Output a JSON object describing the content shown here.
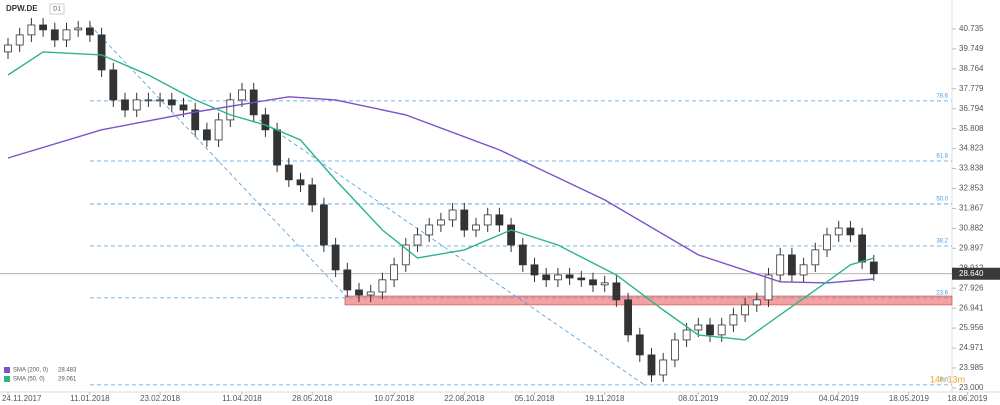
{
  "chart_data": {
    "type": "candlestick",
    "title": "DPW.DE",
    "timeframe": "D1",
    "categories": [
      "24.11.2017",
      null,
      null,
      null,
      null,
      null,
      null,
      "11.01.2018",
      null,
      null,
      null,
      null,
      null,
      "23.02.2018",
      null,
      null,
      null,
      null,
      null,
      null,
      "11.04.2018",
      null,
      null,
      null,
      null,
      null,
      "28.05.2018",
      null,
      null,
      null,
      null,
      null,
      null,
      "10.07.2018",
      null,
      null,
      null,
      null,
      null,
      "22.08.2018",
      null,
      null,
      null,
      null,
      null,
      "05.10.2018",
      null,
      null,
      null,
      null,
      null,
      "19.11.2018",
      null,
      null,
      null,
      null,
      null,
      null,
      null,
      "08.01.2019",
      null,
      null,
      null,
      null,
      null,
      "20.02.2019",
      null,
      null,
      null,
      null,
      null,
      "04.04.2019",
      null,
      null,
      null,
      null,
      null,
      "18.05.2019",
      null,
      null,
      null,
      null,
      "18.06.2019"
    ],
    "open": [
      39.6,
      39.94,
      40.44,
      40.93,
      40.69,
      40.19,
      40.69,
      40.78,
      40.44,
      38.71,
      37.23,
      36.73,
      37.23,
      37.23,
      37.23,
      36.98,
      36.73,
      35.75,
      35.25,
      36.24,
      37.23,
      37.72,
      36.49,
      35.75,
      34.01,
      33.28,
      33.03,
      32.04,
      30.06,
      28.83,
      27.84,
      27.59,
      27.74,
      28.34,
      29.08,
      30.06,
      30.56,
      31.05,
      31.3,
      31.79,
      30.8,
      31.05,
      31.55,
      31.05,
      30.06,
      29.08,
      28.58,
      28.34,
      28.58,
      28.43,
      28.34,
      28.09,
      28.19,
      27.35,
      25.62,
      24.63,
      23.64,
      24.38,
      25.37,
      25.86,
      26.11,
      25.62,
      26.11,
      26.61,
      27.1,
      27.35,
      28.58,
      29.57,
      28.58,
      29.08,
      29.82,
      30.56,
      30.9,
      30.56,
      29.22,
      null,
      null,
      null,
      null,
      null,
      null,
      null,
      null
    ],
    "high": [
      40.29,
      40.79,
      41.28,
      41.28,
      41.04,
      41.04,
      41.13,
      41.13,
      40.79,
      39.06,
      37.58,
      37.58,
      37.58,
      37.58,
      37.58,
      37.33,
      37.08,
      36.1,
      36.59,
      37.58,
      38.07,
      38.07,
      36.84,
      36.1,
      34.36,
      33.63,
      33.38,
      32.39,
      30.41,
      29.18,
      28.19,
      28.09,
      28.69,
      29.43,
      30.41,
      30.91,
      31.4,
      31.65,
      32.14,
      32.14,
      31.4,
      31.9,
      31.9,
      31.4,
      30.41,
      29.43,
      28.93,
      28.93,
      28.93,
      28.78,
      28.69,
      28.54,
      28.54,
      27.7,
      25.97,
      24.98,
      24.73,
      25.72,
      26.21,
      26.46,
      26.46,
      26.46,
      26.96,
      27.45,
      27.7,
      28.93,
      29.92,
      29.92,
      29.43,
      30.17,
      30.91,
      31.25,
      31.25,
      30.91,
      29.57,
      null,
      null,
      null,
      null,
      null,
      null,
      null,
      null
    ],
    "low": [
      39.25,
      39.59,
      40.09,
      40.34,
      39.84,
      39.84,
      40.34,
      40.09,
      38.36,
      36.88,
      36.38,
      36.38,
      36.88,
      36.88,
      36.63,
      36.38,
      35.4,
      34.9,
      34.9,
      35.89,
      36.88,
      36.14,
      35.4,
      33.66,
      32.93,
      32.68,
      31.69,
      29.71,
      28.48,
      27.49,
      27.24,
      27.24,
      27.39,
      27.99,
      28.73,
      29.71,
      30.21,
      30.7,
      30.95,
      30.45,
      30.45,
      30.7,
      30.7,
      29.71,
      28.73,
      28.23,
      27.99,
      27.99,
      28.08,
      27.99,
      27.74,
      27.74,
      27.0,
      25.27,
      24.28,
      23.29,
      23.29,
      24.03,
      25.02,
      25.51,
      25.27,
      25.27,
      25.76,
      26.26,
      26.75,
      27.0,
      28.23,
      28.23,
      28.23,
      28.73,
      29.47,
      30.21,
      30.21,
      28.87,
      28.29,
      null,
      null,
      null,
      null,
      null,
      null,
      null,
      null
    ],
    "close": [
      39.94,
      40.44,
      40.93,
      40.69,
      40.19,
      40.69,
      40.78,
      40.44,
      38.71,
      37.23,
      36.73,
      37.23,
      37.23,
      37.23,
      36.98,
      36.73,
      35.75,
      35.25,
      36.24,
      37.23,
      37.72,
      36.49,
      35.75,
      34.01,
      33.28,
      33.03,
      32.04,
      30.06,
      28.83,
      27.84,
      27.59,
      27.74,
      28.34,
      29.08,
      30.06,
      30.56,
      31.05,
      31.3,
      31.79,
      30.8,
      31.05,
      31.55,
      31.05,
      30.06,
      29.08,
      28.58,
      28.34,
      28.58,
      28.43,
      28.34,
      28.09,
      28.19,
      27.35,
      25.62,
      24.63,
      23.64,
      24.38,
      25.37,
      25.86,
      26.11,
      25.62,
      26.11,
      26.61,
      27.1,
      27.35,
      28.58,
      29.57,
      28.58,
      29.08,
      29.82,
      30.56,
      30.9,
      30.56,
      29.22,
      28.64,
      null,
      null,
      null,
      null,
      null,
      null,
      null,
      null
    ],
    "up_color": "#ffffff",
    "down_color": "#333333",
    "ylim": [
      22.65,
      41.67
    ],
    "yticks": [
      40.735,
      39.749,
      38.764,
      37.779,
      36.794,
      35.808,
      34.823,
      33.838,
      32.853,
      31.867,
      30.882,
      29.897,
      28.912,
      27.926,
      26.941,
      25.956,
      24.971,
      23.985,
      {
        "value": 23,
        "label": "23.000"
      }
    ],
    "last_price": {
      "value": 28.64,
      "label": "28.640"
    },
    "lines": [
      {
        "name": "SMA (200, 0)",
        "last": 28.483,
        "color": "#7b52c8",
        "x": [
          0,
          8,
          16,
          24,
          28,
          34,
          42,
          51,
          59,
          66,
          70,
          74
        ],
        "values": [
          34.36,
          35.75,
          36.63,
          37.38,
          37.23,
          36.49,
          34.76,
          32.29,
          29.57,
          28.24,
          28.19,
          28.38
        ]
      },
      {
        "name": "SMA (50, 0)",
        "last": 29.061,
        "color": "#2bb58a",
        "x": [
          0,
          3,
          8,
          12,
          16,
          19,
          22,
          25,
          28,
          32,
          35,
          39,
          43,
          47,
          52,
          56,
          59,
          63,
          66,
          70,
          72,
          74
        ],
        "values": [
          38.46,
          39.6,
          39.45,
          38.46,
          37.23,
          36.49,
          35.99,
          35.25,
          33.27,
          30.8,
          29.42,
          29.82,
          30.8,
          30.06,
          28.58,
          26.85,
          25.62,
          25.37,
          26.61,
          28.24,
          29.08,
          29.42
        ]
      }
    ],
    "levels": [
      {
        "value": 37.18,
        "label": "78.6"
      },
      {
        "value": 34.21,
        "label": "61.8"
      },
      {
        "value": 32.09,
        "label": "50.0"
      },
      {
        "value": 30.01,
        "label": "38.2"
      },
      {
        "value": 27.45,
        "label": "23.6"
      },
      {
        "value": 23.15,
        "label": "0.0"
      }
    ],
    "trendlines": [
      {
        "x": [
          7,
          29.2
        ],
        "y": [
          40.93,
          27.35
        ]
      },
      {
        "x": [
          21.5,
          54.4
        ],
        "y": [
          36.24,
          23.15
        ]
      }
    ],
    "zone": {
      "x_start": 28.8,
      "ylim": [
        27.1,
        27.54
      ],
      "color": "#f08080"
    },
    "timer": "14h 13m"
  }
}
